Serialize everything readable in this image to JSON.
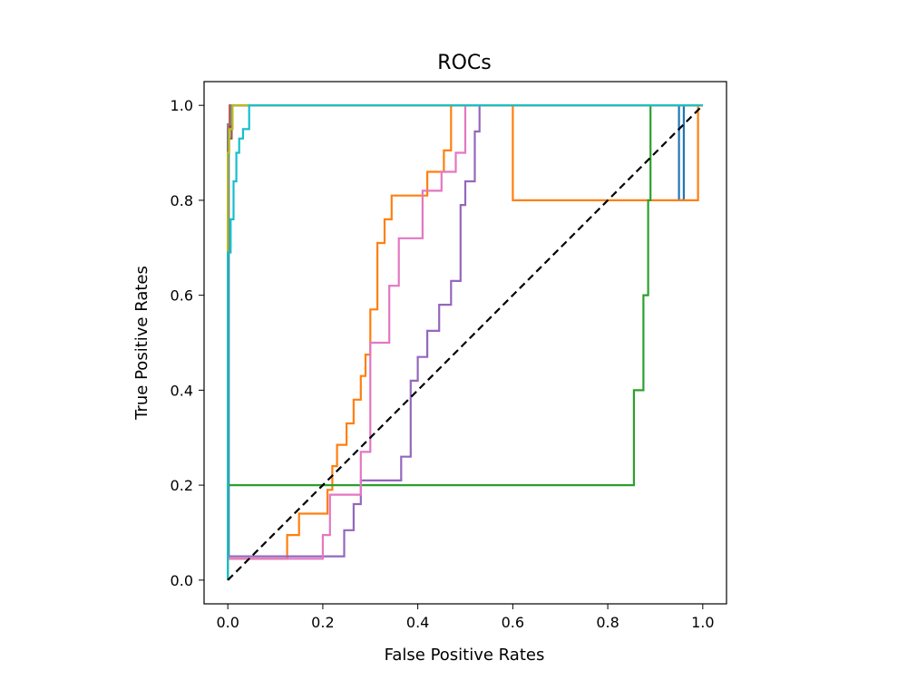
{
  "chart_data": {
    "type": "line",
    "title": "ROCs",
    "xlabel": "False Positive Rates",
    "ylabel": "True Positive Rates",
    "xlim": [
      -0.05,
      1.05
    ],
    "ylim": [
      -0.05,
      1.05
    ],
    "xticks": [
      "0.0",
      "0.2",
      "0.4",
      "0.6",
      "0.8",
      "1.0"
    ],
    "yticks": [
      "0.0",
      "0.2",
      "0.4",
      "0.6",
      "0.8",
      "1.0"
    ],
    "grid": false,
    "legend": "none",
    "reference_line": {
      "x": [
        0,
        1
      ],
      "y": [
        0,
        1
      ],
      "color": "#000000",
      "style": "dashed"
    },
    "series": [
      {
        "color": "#1f77b4",
        "x": [
          0,
          0,
          0.002,
          0.002,
          0.006,
          0.006,
          0.01,
          0.01,
          0.95,
          0.95,
          0.96,
          0.96,
          1
        ],
        "y": [
          0,
          0.05,
          0.05,
          0.95,
          0.95,
          0.98,
          0.98,
          1.0,
          1.0,
          0.8,
          0.8,
          1.0,
          1.0
        ]
      },
      {
        "color": "#ff7f0e",
        "x": [
          0,
          0,
          0.125,
          0.125,
          0.15,
          0.15,
          0.21,
          0.21,
          0.22,
          0.22,
          0.23,
          0.23,
          0.25,
          0.25,
          0.265,
          0.265,
          0.28,
          0.28,
          0.29,
          0.29,
          0.3,
          0.3,
          0.315,
          0.315,
          0.33,
          0.33,
          0.345,
          0.345,
          0.36,
          0.36,
          0.42,
          0.42,
          0.455,
          0.455,
          0.47,
          0.47,
          0.6,
          0.6,
          0.99,
          0.99,
          1
        ],
        "y": [
          0,
          0.045,
          0.045,
          0.095,
          0.095,
          0.14,
          0.14,
          0.19,
          0.19,
          0.24,
          0.24,
          0.285,
          0.285,
          0.33,
          0.33,
          0.38,
          0.38,
          0.43,
          0.43,
          0.475,
          0.475,
          0.57,
          0.57,
          0.71,
          0.71,
          0.76,
          0.76,
          0.81,
          0.81,
          0.81,
          0.81,
          0.86,
          0.86,
          0.905,
          0.905,
          1.0,
          1.0,
          0.8,
          0.8,
          1.0,
          1.0
        ]
      },
      {
        "color": "#2ca02c",
        "x": [
          0,
          0,
          0.85,
          0.85,
          0.855,
          0.855,
          0.875,
          0.875,
          0.885,
          0.885,
          0.89,
          0.89,
          0.915,
          0.915,
          0.93,
          0.93,
          1
        ],
        "y": [
          0,
          0.2,
          0.2,
          0.2,
          0.2,
          0.4,
          0.4,
          0.6,
          0.6,
          0.8,
          0.8,
          1.0,
          1.0,
          1.0,
          1.0,
          1.0,
          1.0
        ]
      },
      {
        "color": "#d62728",
        "x": [
          0,
          0,
          0.004,
          0.004,
          0.93,
          0.93,
          1
        ],
        "y": [
          0,
          0.95,
          0.95,
          1.0,
          1.0,
          1.0,
          1.0
        ]
      },
      {
        "color": "#9467bd",
        "x": [
          0,
          0,
          0.245,
          0.245,
          0.265,
          0.265,
          0.28,
          0.28,
          0.365,
          0.365,
          0.385,
          0.385,
          0.4,
          0.4,
          0.42,
          0.42,
          0.445,
          0.445,
          0.47,
          0.47,
          0.49,
          0.49,
          0.5,
          0.5,
          0.52,
          0.52,
          0.53,
          0.53,
          1
        ],
        "y": [
          0,
          0.05,
          0.05,
          0.105,
          0.105,
          0.16,
          0.16,
          0.21,
          0.21,
          0.26,
          0.26,
          0.42,
          0.42,
          0.47,
          0.47,
          0.525,
          0.525,
          0.58,
          0.58,
          0.63,
          0.63,
          0.79,
          0.79,
          0.84,
          0.84,
          0.945,
          0.945,
          1.0,
          1.0
        ]
      },
      {
        "color": "#8c564b",
        "x": [
          0,
          0,
          0.008,
          0.008,
          1
        ],
        "y": [
          0,
          0.93,
          0.93,
          1.0,
          1.0
        ]
      },
      {
        "color": "#e377c2",
        "x": [
          0,
          0,
          0.2,
          0.2,
          0.215,
          0.215,
          0.28,
          0.28,
          0.3,
          0.3,
          0.34,
          0.34,
          0.36,
          0.36,
          0.41,
          0.41,
          0.45,
          0.45,
          0.48,
          0.48,
          0.5,
          0.5,
          1
        ],
        "y": [
          0,
          0.045,
          0.045,
          0.095,
          0.095,
          0.18,
          0.18,
          0.27,
          0.27,
          0.5,
          0.5,
          0.62,
          0.62,
          0.72,
          0.72,
          0.82,
          0.82,
          0.86,
          0.86,
          0.9,
          0.9,
          1.0,
          1.0
        ]
      },
      {
        "color": "#7f7f7f",
        "x": [
          0,
          0,
          0.006,
          0.006,
          1
        ],
        "y": [
          0,
          0.96,
          0.96,
          1.0,
          1.0
        ]
      },
      {
        "color": "#bcbd22",
        "x": [
          0,
          0,
          0.003,
          0.003,
          0.01,
          0.01,
          1
        ],
        "y": [
          0,
          0.9,
          0.9,
          0.95,
          0.95,
          1.0,
          1.0
        ]
      },
      {
        "color": "#17becf",
        "x": [
          0,
          0,
          0.006,
          0.006,
          0.012,
          0.012,
          0.018,
          0.018,
          0.024,
          0.024,
          0.032,
          0.032,
          0.045,
          0.045,
          0.93,
          0.93,
          1
        ],
        "y": [
          0,
          0.69,
          0.69,
          0.76,
          0.76,
          0.84,
          0.84,
          0.9,
          0.9,
          0.93,
          0.93,
          0.95,
          0.95,
          1.0,
          1.0,
          1.0,
          1.0
        ]
      }
    ]
  }
}
